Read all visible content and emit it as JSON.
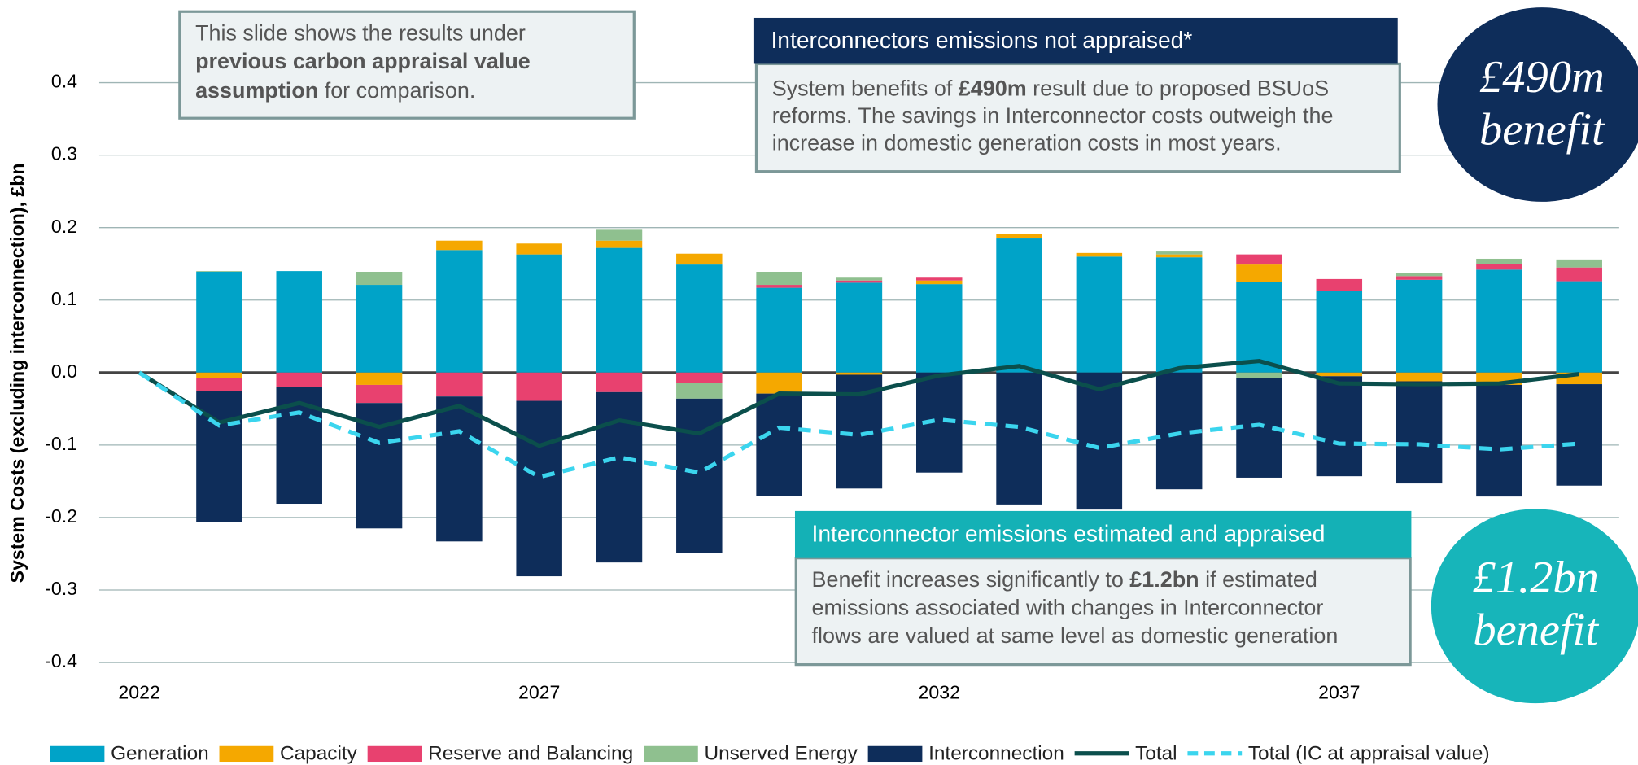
{
  "chart_data": {
    "type": "bar",
    "ylabel": "System Costs (excluding interconnection), £bn",
    "x": [
      2022,
      2023,
      2024,
      2025,
      2026,
      2027,
      2028,
      2029,
      2030,
      2031,
      2032,
      2033,
      2034,
      2035,
      2036,
      2037,
      2038,
      2039,
      2040
    ],
    "xlim": [
      2021.5,
      2040.5
    ],
    "xticks": [
      2022,
      2027,
      2032,
      2037
    ],
    "ylim": [
      -0.4,
      0.4
    ],
    "yticks": [
      0.4,
      0.3,
      0.2,
      0.1,
      {
        "value": 0,
        "label": "0.0"
      },
      -0.1,
      -0.2,
      -0.3,
      -0.4
    ],
    "grid": true,
    "series": [
      {
        "name": "Generation",
        "type": "bar",
        "color": "#00a3c8",
        "values": [
          null,
          0.139,
          0.14,
          0.121,
          0.169,
          0.163,
          0.172,
          0.149,
          0.117,
          0.124,
          0.122,
          0.185,
          0.16,
          0.159,
          0.125,
          0.113,
          0.128,
          0.142,
          0.126
        ]
      },
      {
        "name": "Capacity",
        "type": "bar",
        "color": "#f5a800",
        "values": [
          null,
          -0.007,
          0,
          -0.017,
          0.013,
          0.015,
          0.01,
          0.015,
          -0.029,
          -0.003,
          0.005,
          0.006,
          0.005,
          0.004,
          0.024,
          -0.005,
          -0.012,
          -0.017,
          -0.016
        ]
      },
      {
        "name": "Reserve and Balancing",
        "type": "bar",
        "color": "#e8416f",
        "values": [
          null,
          -0.019,
          -0.02,
          -0.025,
          -0.033,
          -0.039,
          -0.027,
          -0.014,
          0.004,
          0.003,
          0.005,
          0,
          0,
          0,
          0.014,
          0.016,
          0.005,
          0.008,
          0.019
        ]
      },
      {
        "name": "Unserved Energy",
        "type": "bar",
        "color": "#8fc08f",
        "values": [
          null,
          0.001,
          0,
          0.018,
          0,
          0,
          0.015,
          -0.022,
          0.018,
          0.005,
          0,
          0,
          0,
          0.004,
          -0.008,
          0,
          0.004,
          0.007,
          0.011
        ]
      },
      {
        "name": "Interconnection",
        "type": "bar",
        "color": "#0e2d5a",
        "values": [
          null,
          -0.18,
          -0.161,
          -0.173,
          -0.2,
          -0.242,
          -0.235,
          -0.213,
          -0.141,
          -0.157,
          -0.138,
          -0.182,
          -0.189,
          -0.161,
          -0.137,
          -0.138,
          -0.141,
          -0.154,
          -0.14
        ]
      },
      {
        "name": "Total",
        "type": "line",
        "color": "#0b4f4c",
        "values": [
          0,
          -0.069,
          -0.042,
          -0.075,
          -0.046,
          -0.101,
          -0.066,
          -0.084,
          -0.029,
          -0.03,
          -0.004,
          0.009,
          -0.023,
          0.006,
          0.016,
          -0.015,
          -0.016,
          -0.015,
          -0.002
        ]
      },
      {
        "name": "Total (IC at appraisal value)",
        "type": "line",
        "dashed": true,
        "color": "#3bd5ee",
        "values": [
          0,
          -0.073,
          -0.055,
          -0.097,
          -0.081,
          -0.144,
          -0.117,
          -0.138,
          -0.076,
          -0.086,
          -0.065,
          -0.075,
          -0.104,
          -0.084,
          -0.072,
          -0.098,
          -0.099,
          -0.106,
          -0.098
        ]
      }
    ],
    "annotations": [
      {
        "lines": [
          [
            {
              "text": "This slide shows the results under",
              "bold": false
            }
          ],
          [
            {
              "text": "previous carbon appraisal value",
              "bold": true
            }
          ],
          [
            {
              "text": "assumption",
              "bold": true
            },
            {
              "text": " for comparison.",
              "bold": false
            }
          ]
        ]
      },
      {
        "header": "Interconnectors emissions not appraised*",
        "header_color": "#0e2d5a",
        "lines": [
          [
            {
              "text": "System benefits of ",
              "bold": false
            },
            {
              "text": "£490m",
              "bold": true
            },
            {
              "text": " result due to proposed BSUoS",
              "bold": false
            }
          ],
          [
            {
              "text": "reforms. The savings in Interconnector costs outweigh the",
              "bold": false
            }
          ],
          [
            {
              "text": "increase in domestic generation costs in most years.",
              "bold": false
            }
          ]
        ]
      },
      {
        "header": "Interconnector emissions estimated and appraised",
        "header_color": "#14b1b6",
        "lines": [
          [
            {
              "text": "Benefit increases significantly to ",
              "bold": false
            },
            {
              "text": "£1.2bn",
              "bold": true
            },
            {
              "text": " if estimated",
              "bold": false
            }
          ],
          [
            {
              "text": "emissions associated with changes in Interconnector",
              "bold": false
            }
          ],
          [
            {
              "text": "flows are valued at same level as domestic generation",
              "bold": false
            }
          ]
        ]
      }
    ],
    "badges": [
      {
        "lines": [
          "£490m",
          "benefit"
        ],
        "color": "#0e2d5a"
      },
      {
        "lines": [
          "£1.2bn",
          "benefit"
        ],
        "color": "#17b5ba"
      }
    ]
  }
}
